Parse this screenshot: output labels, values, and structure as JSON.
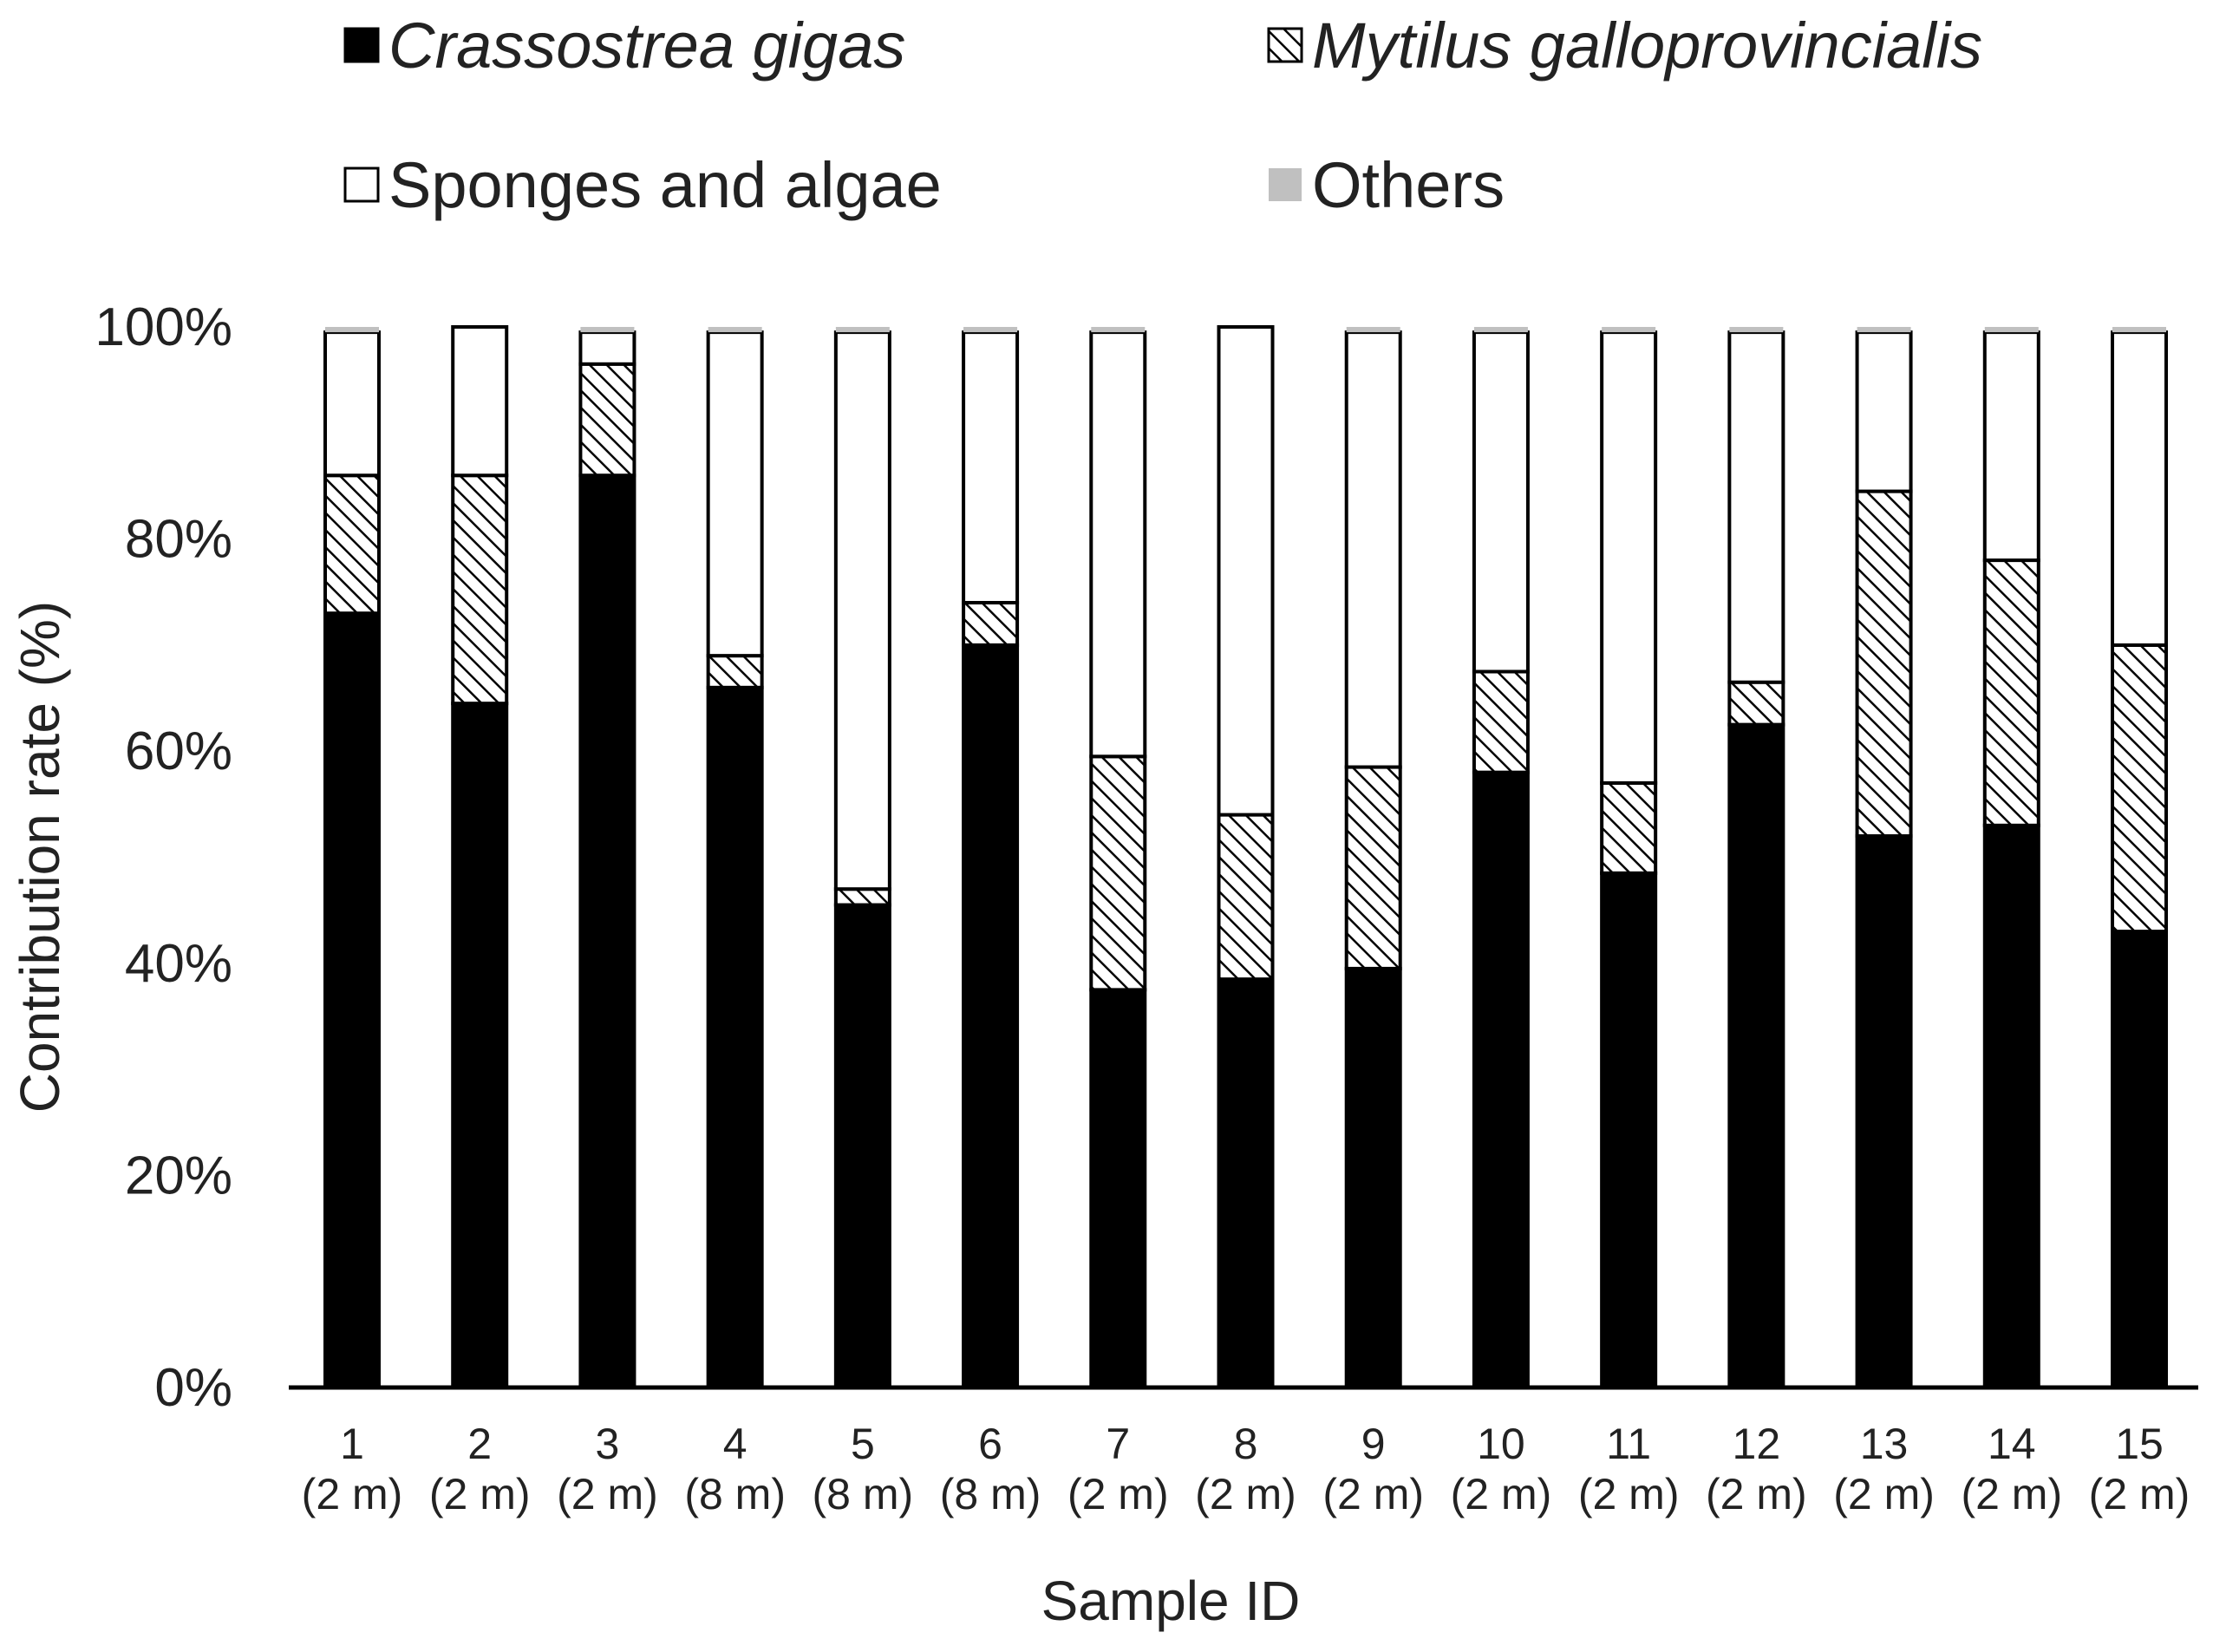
{
  "chart_data": {
    "type": "bar",
    "stacked": true,
    "title": "",
    "xlabel": "Sample ID",
    "ylabel": "Contribution rate (%)",
    "ylim": [
      0,
      100
    ],
    "yticks": [
      "0%",
      "20%",
      "40%",
      "60%",
      "80%",
      "100%"
    ],
    "categories": [
      {
        "id": "1",
        "depth": "(2 m)"
      },
      {
        "id": "2",
        "depth": "(2 m)"
      },
      {
        "id": "3",
        "depth": "(2 m)"
      },
      {
        "id": "4",
        "depth": "(8 m)"
      },
      {
        "id": "5",
        "depth": "(8 m)"
      },
      {
        "id": "6",
        "depth": "(8 m)"
      },
      {
        "id": "7",
        "depth": "(2 m)"
      },
      {
        "id": "8",
        "depth": "(2 m)"
      },
      {
        "id": "9",
        "depth": "(2 m)"
      },
      {
        "id": "10",
        "depth": "(2 m)"
      },
      {
        "id": "11",
        "depth": "(2 m)"
      },
      {
        "id": "12",
        "depth": "(2 m)"
      },
      {
        "id": "13",
        "depth": "(2 m)"
      },
      {
        "id": "14",
        "depth": "(2 m)"
      },
      {
        "id": "15",
        "depth": "(2 m)"
      }
    ],
    "series": [
      {
        "name": "Crassostrea gigas",
        "italic": true,
        "fill": "solid",
        "color": "#000000",
        "values": [
          73,
          64.5,
          86,
          66,
          45.5,
          70,
          37.5,
          38.5,
          39.5,
          58,
          48.5,
          62.5,
          52,
          53,
          43
        ]
      },
      {
        "name": "Mytilus galloprovincialis",
        "italic": true,
        "fill": "hatch",
        "color": "#000000",
        "values": [
          13,
          21.5,
          10.5,
          3,
          1.5,
          4,
          22,
          15.5,
          19,
          9.5,
          8.5,
          4,
          32.5,
          25,
          27
        ]
      },
      {
        "name": "Sponges and algae",
        "italic": false,
        "fill": "hollow",
        "color": "#ffffff",
        "values": [
          13.5,
          14,
          3,
          30.5,
          52.5,
          25.5,
          40,
          46,
          41,
          32,
          42.5,
          33,
          15,
          21.5,
          29.5
        ]
      },
      {
        "name": "Others",
        "italic": false,
        "fill": "solid",
        "color": "#c0c0c0",
        "values": [
          0.5,
          0,
          0.5,
          0.5,
          0.5,
          0.5,
          0.5,
          0,
          0.5,
          0.5,
          0.5,
          0.5,
          0.5,
          0.5,
          0.5
        ]
      }
    ],
    "legend_position": "top"
  }
}
